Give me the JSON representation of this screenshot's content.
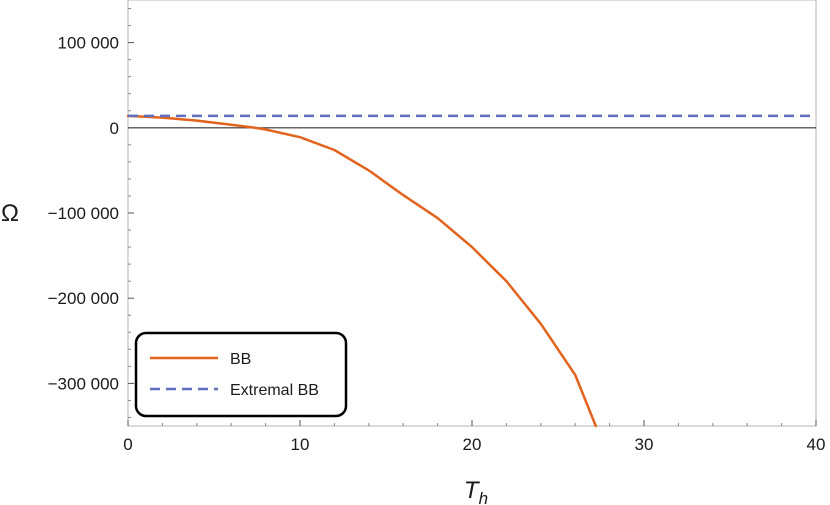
{
  "chart_data": {
    "type": "line",
    "title": "",
    "xlabel": "T",
    "xlabel_subscript": "h",
    "ylabel": "Ω",
    "xlim": [
      0,
      40
    ],
    "ylim": [
      -350000,
      150000
    ],
    "x_ticks": [
      0,
      10,
      20,
      30,
      40
    ],
    "x_tick_labels": [
      "0",
      "10",
      "20",
      "30",
      "40"
    ],
    "y_ticks": [
      -300000,
      -200000,
      -100000,
      0,
      100000
    ],
    "y_tick_labels": [
      "−300 000",
      "−200 000",
      "−100 000",
      "0",
      "100 000"
    ],
    "grid": false,
    "legend_position": "bottom-left",
    "series": [
      {
        "name": "BB",
        "color": "#e2631e",
        "style": "solid",
        "x": [
          0,
          2,
          4,
          6,
          7.4,
          8,
          10,
          12,
          14,
          16,
          18,
          20,
          22,
          24,
          26,
          27.2
        ],
        "y": [
          14000,
          12000,
          8500,
          3500,
          0,
          -2000,
          -11000,
          -26000,
          -50000,
          -79000,
          -106000,
          -140000,
          -180000,
          -230000,
          -290000,
          -350000
        ]
      },
      {
        "name": "Extremal BB",
        "color": "#5f6fbd",
        "style": "dashed",
        "x": [
          0,
          40
        ],
        "y": [
          14000,
          14000
        ]
      }
    ]
  }
}
